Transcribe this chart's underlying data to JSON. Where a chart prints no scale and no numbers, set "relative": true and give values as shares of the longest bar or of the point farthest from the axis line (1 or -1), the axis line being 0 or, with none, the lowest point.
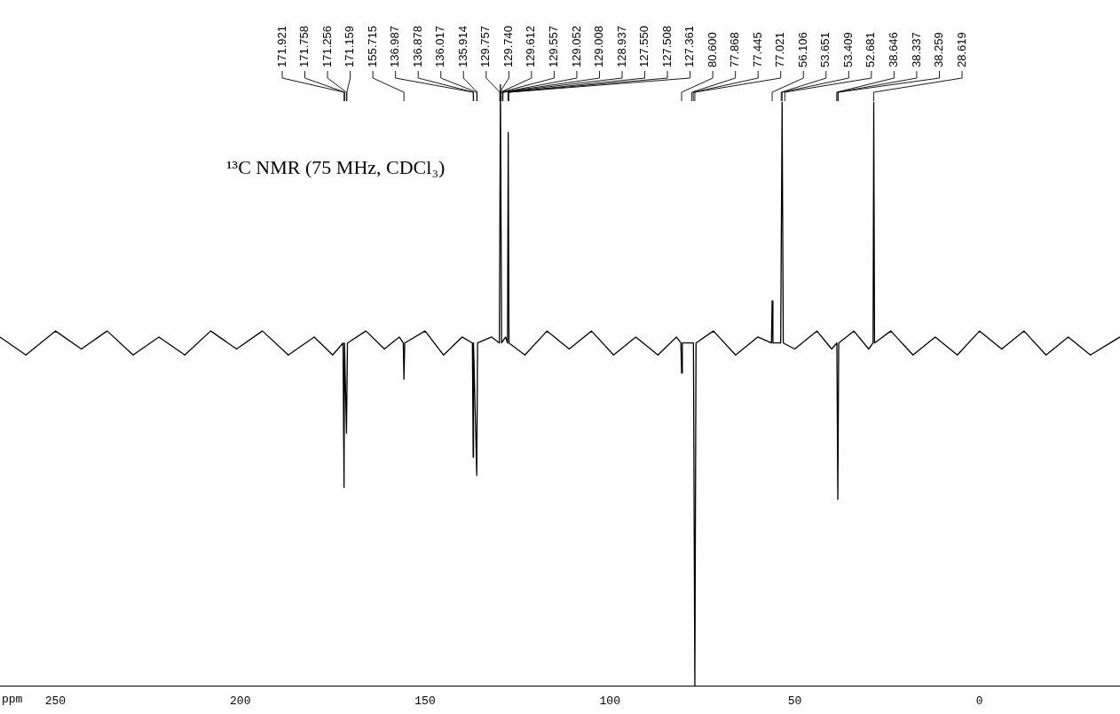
{
  "chart_data": {
    "type": "line",
    "relative": true,
    "title": "¹³C NMR (75 MHz, CDCl₃)",
    "xlabel": "ppm",
    "color": "#000000",
    "xlim": [
      265,
      -38
    ],
    "xticks": [
      250,
      200,
      150,
      100,
      50,
      0
    ],
    "x": [
      265,
      258,
      250,
      243,
      236,
      229,
      222,
      215,
      208,
      201,
      194,
      187,
      180,
      175,
      172.2,
      171.921,
      171.8,
      171.256,
      171.0,
      166,
      161,
      157,
      155.9,
      155.715,
      155.5,
      150,
      145,
      140,
      137.2,
      136.987,
      136.9,
      136.017,
      135.8,
      132,
      129.9,
      129.612,
      129.3,
      128.2,
      127.7,
      127.508,
      127.3,
      123,
      117,
      111,
      105,
      99,
      93,
      87,
      82,
      80.8,
      80.6,
      80.4,
      77.4,
      77.021,
      76.7,
      72,
      66,
      60,
      56.3,
      56.106,
      55.9,
      53.8,
      53.409,
      53.1,
      50,
      44,
      40,
      38.6,
      38.337,
      38.1,
      34,
      30,
      28.8,
      28.619,
      28.4,
      24,
      18,
      12,
      6,
      0,
      -6,
      -12,
      -18,
      -24,
      -30,
      -38
    ],
    "values": [
      0.58,
      0.55,
      0.59,
      0.56,
      0.59,
      0.55,
      0.58,
      0.55,
      0.59,
      0.56,
      0.59,
      0.55,
      0.58,
      0.55,
      0.57,
      0.33,
      0.57,
      0.42,
      0.57,
      0.59,
      0.56,
      0.58,
      0.57,
      0.51,
      0.57,
      0.59,
      0.55,
      0.58,
      0.57,
      0.38,
      0.57,
      0.35,
      0.57,
      0.58,
      0.57,
      1,
      0.57,
      0.58,
      0.57,
      0.92,
      0.57,
      0.55,
      0.59,
      0.56,
      0.59,
      0.55,
      0.58,
      0.55,
      0.58,
      0.57,
      0.52,
      0.57,
      0.57,
      0,
      0.57,
      0.59,
      0.55,
      0.58,
      0.57,
      0.64,
      0.57,
      0.57,
      0.97,
      0.57,
      0.56,
      0.59,
      0.56,
      0.57,
      0.31,
      0.57,
      0.59,
      0.56,
      0.57,
      0.97,
      0.57,
      0.59,
      0.55,
      0.58,
      0.55,
      0.59,
      0.56,
      0.59,
      0.55,
      0.58,
      0.55,
      0.58
    ],
    "annotations": [
      {
        "text": "171.921",
        "x": 171.921
      },
      {
        "text": "171.758",
        "x": 171.758
      },
      {
        "text": "171.256",
        "x": 171.256
      },
      {
        "text": "171.159",
        "x": 171.159
      },
      {
        "text": "155.715",
        "x": 155.715
      },
      {
        "text": "136.987",
        "x": 136.987
      },
      {
        "text": "136.878",
        "x": 136.878
      },
      {
        "text": "136.017",
        "x": 136.017
      },
      {
        "text": "135.914",
        "x": 135.914
      },
      {
        "text": "129.757",
        "x": 129.757
      },
      {
        "text": "129.740",
        "x": 129.74
      },
      {
        "text": "129.612",
        "x": 129.612
      },
      {
        "text": "129.557",
        "x": 129.557
      },
      {
        "text": "129.052",
        "x": 129.052
      },
      {
        "text": "129.008",
        "x": 129.008
      },
      {
        "text": "128.937",
        "x": 128.937
      },
      {
        "text": "127.550",
        "x": 127.55
      },
      {
        "text": "127.508",
        "x": 127.508
      },
      {
        "text": "127.361",
        "x": 127.361
      },
      {
        "text": "80.600",
        "x": 80.6
      },
      {
        "text": "77.868",
        "x": 77.868
      },
      {
        "text": "77.445",
        "x": 77.445
      },
      {
        "text": "77.021",
        "x": 77.021
      },
      {
        "text": "56.106",
        "x": 56.106
      },
      {
        "text": "53.651",
        "x": 53.651
      },
      {
        "text": "53.409",
        "x": 53.409
      },
      {
        "text": "52.681",
        "x": 52.681
      },
      {
        "text": "38.646",
        "x": 38.646
      },
      {
        "text": "38.337",
        "x": 38.337
      },
      {
        "text": "38.259",
        "x": 38.259
      },
      {
        "text": "28.619",
        "x": 28.619
      }
    ]
  }
}
